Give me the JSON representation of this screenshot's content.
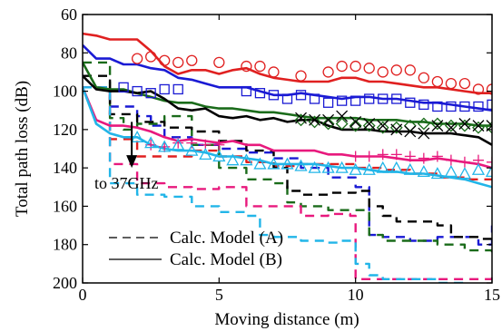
{
  "chart_data": {
    "type": "line",
    "xlabel": "Moving distance (m)",
    "ylabel": "Total path loss (dB)",
    "xlim": [
      0,
      15
    ],
    "ylim": [
      60,
      200
    ],
    "y_inverted": true,
    "xticks": [
      0,
      5,
      10,
      15
    ],
    "yticks": [
      60,
      80,
      100,
      120,
      140,
      160,
      180,
      200
    ],
    "grid": false,
    "legend_position": "bottom-left",
    "legend": [
      {
        "label": "Calc. Model (A)",
        "style": "dashed"
      },
      {
        "label": "Calc. Model (B)",
        "style": "solid"
      }
    ],
    "annotation": {
      "text": "to 37GHz",
      "arrow_x": 1.8,
      "arrow_from_y": 116,
      "arrow_to_y": 140
    },
    "series": [
      {
        "color": "#e02020",
        "model": "B",
        "style": "solid",
        "x": [
          0,
          0.5,
          1,
          1.5,
          2,
          2.5,
          3,
          3.5,
          4,
          4.5,
          5,
          5.5,
          6,
          6.5,
          7,
          7.5,
          8,
          8.5,
          9,
          9.5,
          10,
          10.5,
          11,
          11.5,
          12,
          12.5,
          13,
          13.5,
          14,
          14.5,
          15
        ],
        "y": [
          70,
          71,
          73,
          73,
          73,
          79,
          87,
          91,
          89,
          89,
          91,
          89,
          88,
          91,
          93,
          94,
          95,
          95,
          95,
          93,
          93,
          95,
          95,
          96,
          97,
          98,
          98,
          99,
          100,
          101,
          101
        ]
      },
      {
        "color": "#e02020",
        "model": "meas",
        "style": "circle",
        "x": [
          2,
          2.5,
          3,
          3.5,
          4,
          5,
          6,
          6.5,
          7,
          8,
          9,
          9.5,
          10,
          10.5,
          11,
          11.5,
          12,
          12.5,
          13,
          13.5,
          14,
          14.5,
          15
        ],
        "y": [
          83,
          82,
          84,
          85,
          84,
          85,
          87,
          87,
          90,
          92,
          90,
          87,
          87,
          88,
          90,
          89,
          89,
          93,
          95,
          96,
          96,
          99,
          99
        ]
      },
      {
        "color": "#e02020",
        "model": "A",
        "style": "dashed",
        "x": [
          0,
          1,
          2,
          3,
          4,
          5,
          6,
          7,
          8,
          9,
          10,
          11,
          12,
          13,
          14,
          15
        ],
        "y": [
          98,
          125,
          134,
          134,
          131,
          134,
          137,
          139,
          138,
          138,
          140,
          141,
          143,
          145,
          146,
          146
        ]
      },
      {
        "color": "#1a1ad4",
        "model": "B",
        "style": "solid",
        "x": [
          0,
          0.5,
          1,
          1.5,
          2,
          2.5,
          3,
          3.5,
          4,
          4.5,
          5,
          5.5,
          6,
          6.5,
          7,
          7.5,
          8,
          8.5,
          9,
          9.5,
          10,
          10.5,
          11,
          11.5,
          12,
          12.5,
          13,
          13.5,
          14,
          14.5,
          15
        ],
        "y": [
          76,
          83,
          83,
          86,
          86,
          88,
          89,
          93,
          94,
          96,
          98,
          98,
          98,
          100,
          102,
          102,
          101,
          102,
          103,
          104,
          103,
          103,
          104,
          104,
          105,
          106,
          106,
          107,
          108,
          109,
          110
        ]
      },
      {
        "color": "#1a1ad4",
        "model": "meas",
        "style": "square",
        "x": [
          1.5,
          2,
          2.5,
          3,
          3.5,
          6,
          6.5,
          7,
          7.5,
          8,
          8.5,
          9,
          9.5,
          10,
          10.5,
          11,
          11.5,
          12,
          12.5,
          13,
          13.5,
          14,
          14.5,
          15
        ],
        "y": [
          98,
          100,
          101,
          99,
          99,
          100,
          101,
          102,
          104,
          102,
          104,
          106,
          105,
          105,
          104,
          104,
          104,
          106,
          107,
          108,
          108,
          108,
          108,
          107
        ]
      },
      {
        "color": "#1a1ad4",
        "model": "A",
        "style": "dashed",
        "x": [
          0,
          1,
          2,
          2.5,
          3,
          4,
          5,
          6,
          7,
          8,
          9,
          10,
          10.5,
          11,
          12,
          13,
          14,
          14.5,
          15
        ],
        "y": [
          98,
          108,
          113,
          118,
          124,
          128,
          130,
          132,
          135,
          140,
          145,
          150,
          175,
          176,
          178,
          176,
          176,
          180,
          170
        ]
      },
      {
        "color": "#1a6b1a",
        "model": "B",
        "style": "solid",
        "x": [
          0,
          0.5,
          1,
          1.5,
          2,
          2.5,
          3,
          3.5,
          4,
          4.5,
          5,
          5.5,
          6,
          6.5,
          7,
          7.5,
          8,
          8.5,
          9,
          9.5,
          10,
          10.5,
          11,
          11.5,
          12,
          12.5,
          13,
          13.5,
          14,
          14.5,
          15
        ],
        "y": [
          85,
          98,
          99,
          99,
          101,
          103,
          105,
          106,
          106,
          108,
          109,
          109,
          110,
          111,
          111,
          112,
          113,
          114,
          114,
          114,
          114,
          115,
          115,
          115,
          116,
          116,
          117,
          117,
          117,
          118,
          118
        ]
      },
      {
        "color": "#1a6b1a",
        "model": "meas",
        "style": "diamond",
        "x": [
          8,
          8.5,
          9,
          9.5,
          10,
          10.5,
          11,
          11.5,
          12,
          12.5,
          13,
          13.5,
          14,
          14.5,
          15
        ],
        "y": [
          115,
          116,
          117,
          117,
          118,
          118,
          119,
          119,
          118,
          117,
          117,
          118,
          118,
          119,
          119
        ]
      },
      {
        "color": "#1a6b1a",
        "model": "A",
        "style": "dashed",
        "x": [
          0,
          1,
          1.5,
          2,
          3,
          4,
          5,
          6,
          7,
          7.5,
          8,
          9,
          10,
          10.5,
          11,
          12,
          13,
          14,
          15
        ],
        "y": [
          85,
          114,
          120,
          117,
          113,
          128,
          140,
          146,
          148,
          158,
          160,
          162,
          162,
          175,
          178,
          178,
          180,
          183,
          186
        ]
      },
      {
        "color": "#000000",
        "model": "B",
        "style": "solid",
        "x": [
          0,
          0.5,
          1,
          1.5,
          2,
          2.5,
          3,
          3.5,
          4,
          4.5,
          5,
          5.5,
          6,
          6.5,
          7,
          7.5,
          8,
          8.5,
          9,
          9.5,
          10,
          10.5,
          11,
          11.5,
          12,
          12.5,
          13,
          13.5,
          14,
          14.5,
          15
        ],
        "y": [
          92,
          99,
          100,
          100,
          101,
          100,
          104,
          109,
          110,
          109,
          113,
          114,
          113,
          115,
          114,
          116,
          115,
          115,
          118,
          120,
          120,
          120,
          121,
          121,
          121,
          122,
          122,
          122,
          123,
          124,
          128
        ]
      },
      {
        "color": "#000000",
        "model": "meas",
        "style": "cross",
        "x": [
          8,
          8.5,
          9,
          9.5,
          10,
          10.5,
          11,
          11.5,
          12,
          12.5,
          13,
          13.5,
          14,
          14.5,
          15
        ],
        "y": [
          114,
          115,
          115,
          113,
          116,
          117,
          118,
          120,
          121,
          122,
          118,
          119,
          117,
          118,
          118
        ]
      },
      {
        "color": "#000000",
        "model": "A",
        "style": "dashed",
        "x": [
          0,
          1,
          2,
          3,
          4,
          5,
          6,
          7,
          7.5,
          8,
          9,
          9.5,
          10,
          10.5,
          11,
          11.5,
          12,
          13,
          13.5,
          14,
          14.5,
          15
        ],
        "y": [
          92,
          112,
          116,
          119,
          121,
          126,
          131,
          140,
          152,
          154,
          153,
          153,
          152,
          160,
          165,
          168,
          168,
          170,
          176,
          176,
          177,
          176
        ]
      },
      {
        "color": "#e8197d",
        "model": "B",
        "style": "solid",
        "x": [
          0,
          0.5,
          1,
          1.5,
          2,
          2.5,
          3,
          3.5,
          4,
          4.5,
          5,
          5.5,
          6,
          6.5,
          7,
          7.5,
          8,
          8.5,
          9,
          9.5,
          10,
          10.5,
          11,
          11.5,
          12,
          12.5,
          13,
          13.5,
          14,
          14.5,
          15
        ],
        "y": [
          98,
          115,
          118,
          118,
          119,
          121,
          124,
          126,
          125,
          126,
          127,
          126,
          128,
          128,
          131,
          131,
          131,
          131,
          133,
          133,
          134,
          134,
          134,
          135,
          136,
          136,
          135,
          136,
          137,
          138,
          140
        ]
      },
      {
        "color": "#e8197d",
        "model": "meas",
        "style": "plus",
        "x": [
          2.5,
          3,
          3.5,
          4,
          4.5,
          5,
          10,
          10.5,
          11,
          11.5,
          12,
          12.5,
          13,
          13.5,
          14,
          14.5,
          15
        ],
        "y": [
          128,
          129,
          127,
          127,
          128,
          128,
          134,
          134,
          133,
          133,
          134,
          135,
          134,
          136,
          137,
          136,
          137
        ]
      },
      {
        "color": "#e8197d",
        "model": "A",
        "style": "dashed",
        "x": [
          0,
          1,
          2,
          3,
          4,
          5,
          6,
          7,
          8,
          9,
          9.8,
          10,
          11,
          12,
          13,
          14,
          15
        ],
        "y": [
          98,
          138,
          148,
          150,
          151,
          150,
          160,
          160,
          165,
          164,
          165,
          198,
          198,
          198,
          198,
          198,
          196
        ]
      },
      {
        "color": "#22b5e8",
        "model": "B",
        "style": "solid",
        "x": [
          0,
          0.5,
          1,
          1.5,
          2,
          2.5,
          3,
          3.5,
          4,
          4.5,
          5,
          5.5,
          6,
          6.5,
          7,
          7.5,
          8,
          8.5,
          9,
          9.5,
          10,
          10.5,
          11,
          11.5,
          12,
          12.5,
          13,
          13.5,
          14,
          14.5,
          15
        ],
        "y": [
          98,
          117,
          122,
          124,
          124,
          128,
          130,
          131,
          131,
          132,
          134,
          134,
          135,
          136,
          138,
          138,
          138,
          138,
          139,
          140,
          140,
          141,
          142,
          142,
          143,
          143,
          144,
          145,
          146,
          148,
          150
        ]
      },
      {
        "color": "#22b5e8",
        "model": "meas",
        "style": "triangle",
        "x": [
          2,
          2.5,
          3,
          3.5,
          4,
          4.5,
          5,
          5.5,
          6,
          6.5,
          7,
          7.5,
          8,
          8.5,
          9,
          9.5,
          10,
          10.5,
          11,
          11.5,
          12,
          12.5,
          13,
          13.5,
          14,
          14.5,
          15
        ],
        "y": [
          124,
          127,
          129,
          128,
          131,
          133,
          134,
          136,
          136,
          138,
          138,
          138,
          139,
          140,
          140,
          140,
          141,
          141,
          140,
          140,
          141,
          142,
          143,
          142,
          143,
          141,
          142
        ]
      },
      {
        "color": "#22b5e8",
        "model": "A",
        "style": "dashed",
        "x": [
          0,
          1,
          2,
          3,
          4,
          5,
          6,
          6.5,
          7,
          8,
          9,
          9.5,
          10,
          10.5,
          11,
          12,
          13,
          14,
          15
        ],
        "y": [
          98,
          148,
          154,
          155,
          160,
          163,
          165,
          175,
          176,
          178,
          179,
          178,
          190,
          196,
          198,
          198,
          200,
          202,
          203
        ]
      }
    ]
  }
}
